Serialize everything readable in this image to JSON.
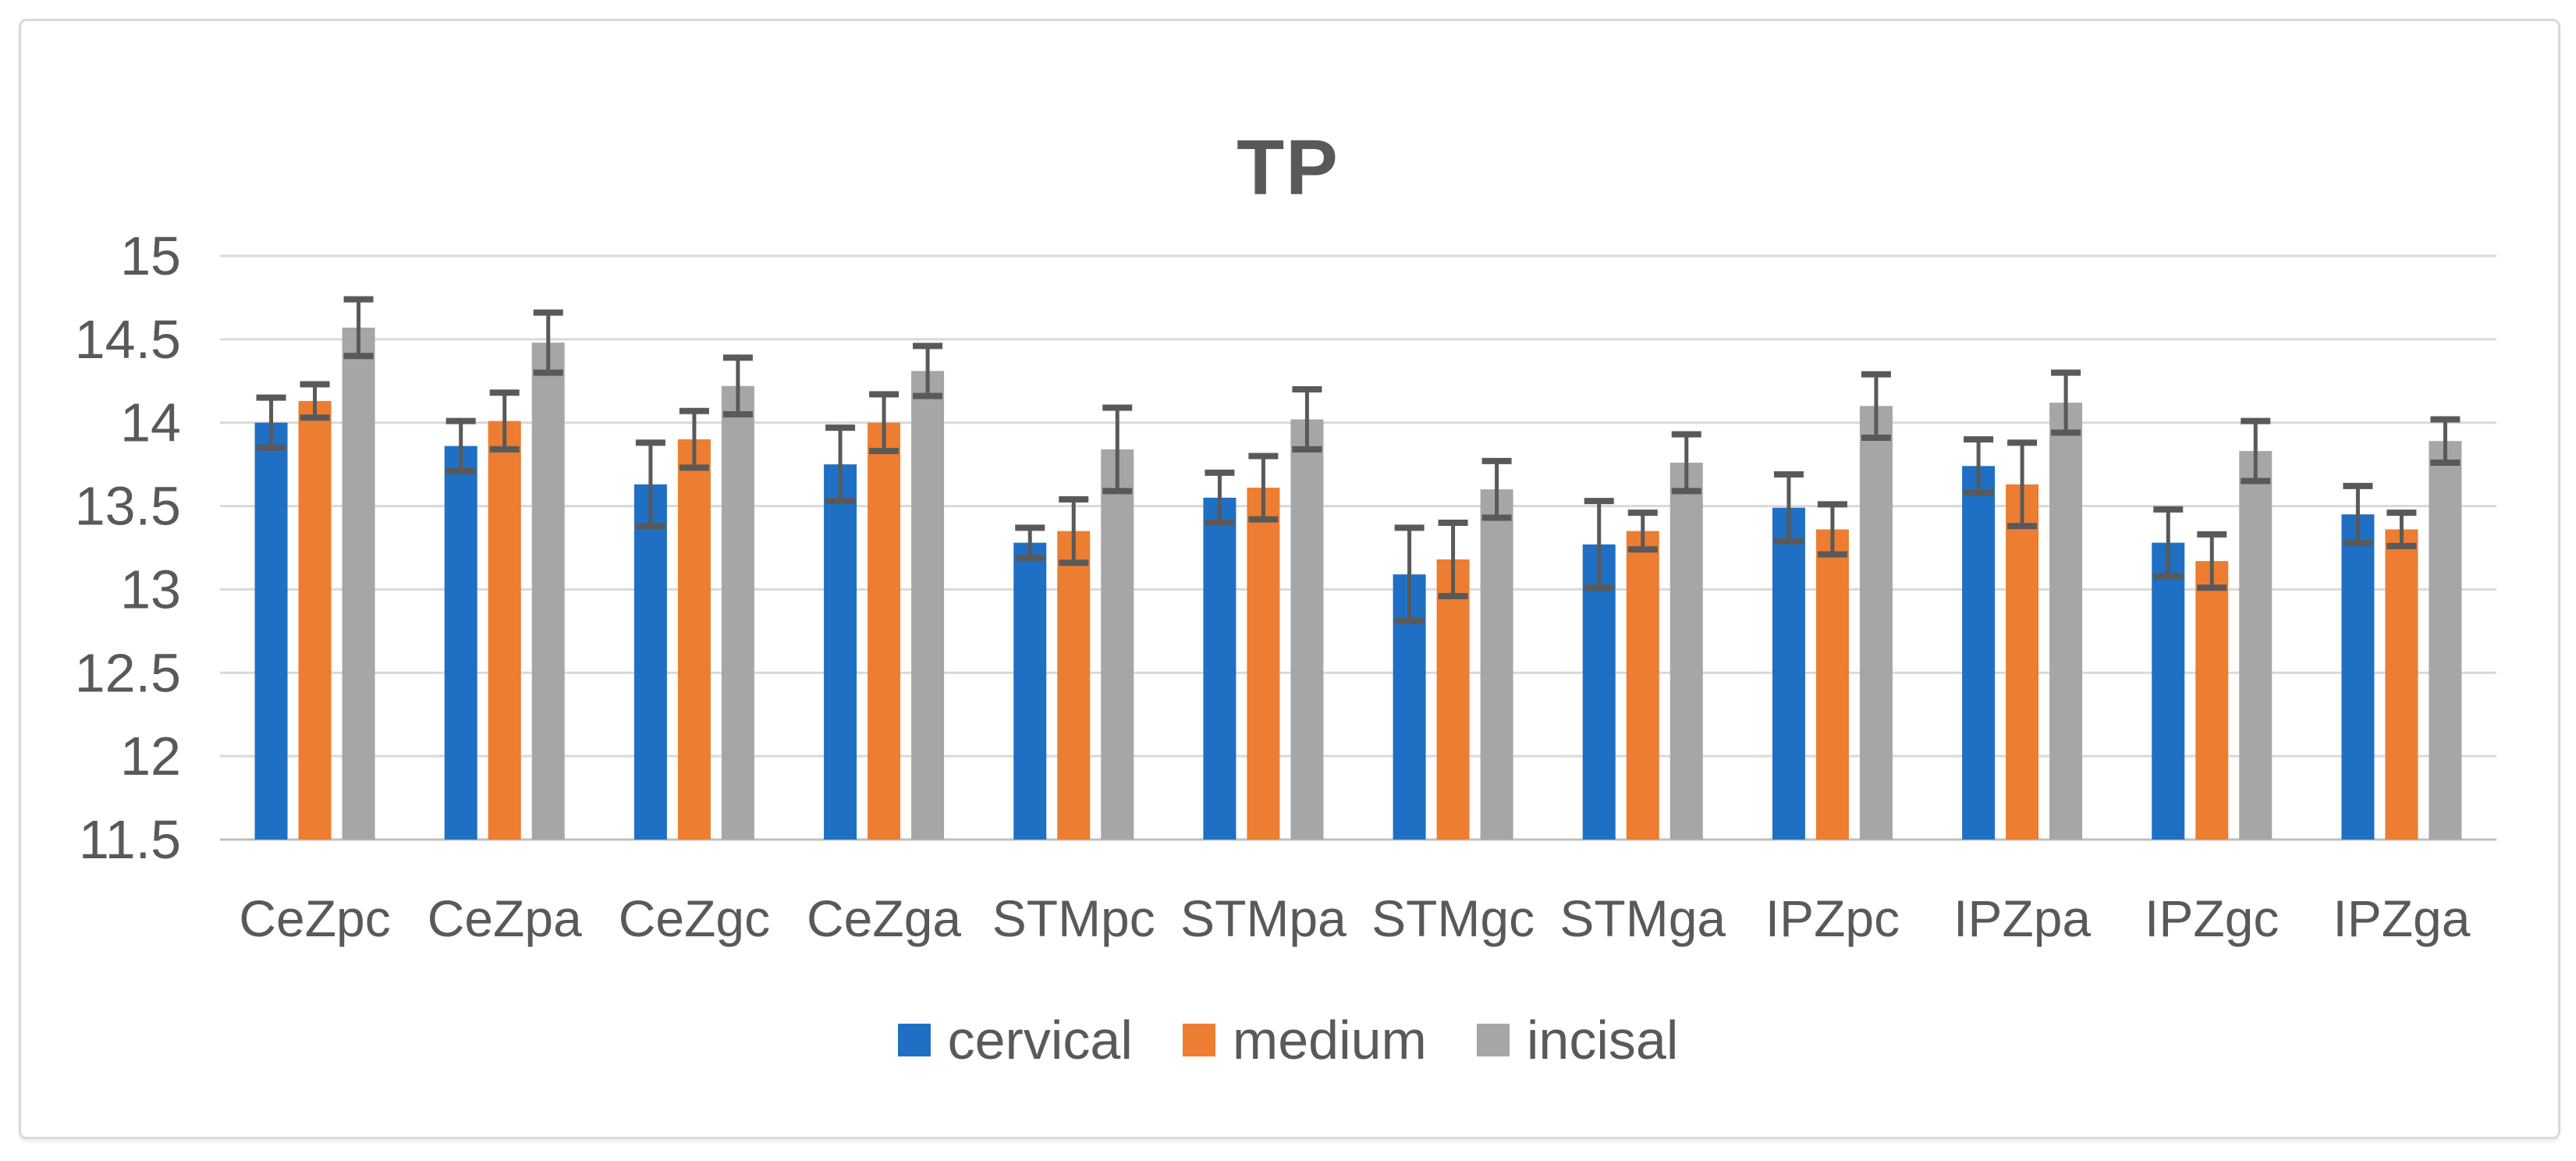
{
  "figure": {
    "background": "#FFFFFF",
    "border_color": "#D9D9D9"
  },
  "chart_data": {
    "type": "bar",
    "title": "TP",
    "title_color": "#595959",
    "text_color": "#595959",
    "gridline_color": "#D9D9D9",
    "axis_line_color": "#BFBFBF",
    "error_bar_color": "#595959",
    "grid": true,
    "legend_position": "bottom",
    "categories": [
      "CeZpc",
      "CeZpa",
      "CeZgc",
      "CeZga",
      "STMpc",
      "STMpa",
      "STMgc",
      "STMga",
      "IPZpc",
      "IPZpa",
      "IPZgc",
      "IPZga"
    ],
    "series": [
      {
        "name": "cervical",
        "color": "#1F70C4",
        "values": [
          14.0,
          13.86,
          13.63,
          13.75,
          13.28,
          13.55,
          13.09,
          13.27,
          13.49,
          13.74,
          13.28,
          13.45
        ],
        "errors": [
          0.15,
          0.15,
          0.25,
          0.22,
          0.09,
          0.15,
          0.28,
          0.26,
          0.2,
          0.16,
          0.2,
          0.17
        ]
      },
      {
        "name": "medium",
        "color": "#ED7D31",
        "values": [
          14.13,
          14.01,
          13.9,
          14.0,
          13.35,
          13.61,
          13.18,
          13.35,
          13.36,
          13.63,
          13.17,
          13.36
        ],
        "errors": [
          0.1,
          0.17,
          0.17,
          0.17,
          0.19,
          0.19,
          0.22,
          0.11,
          0.15,
          0.25,
          0.16,
          0.1
        ]
      },
      {
        "name": "incisal",
        "color": "#A6A6A6",
        "values": [
          14.57,
          14.48,
          14.22,
          14.31,
          13.84,
          14.02,
          13.6,
          13.76,
          14.1,
          14.12,
          13.83,
          13.89
        ],
        "errors": [
          0.17,
          0.18,
          0.17,
          0.15,
          0.25,
          0.18,
          0.17,
          0.17,
          0.19,
          0.18,
          0.18,
          0.13
        ]
      }
    ],
    "y_axis": {
      "min": 11.5,
      "max": 15,
      "step": 0.5,
      "tick_labels": [
        "15",
        "14.5",
        "14",
        "13.5",
        "13",
        "12.5",
        "12",
        "11.5"
      ]
    }
  }
}
